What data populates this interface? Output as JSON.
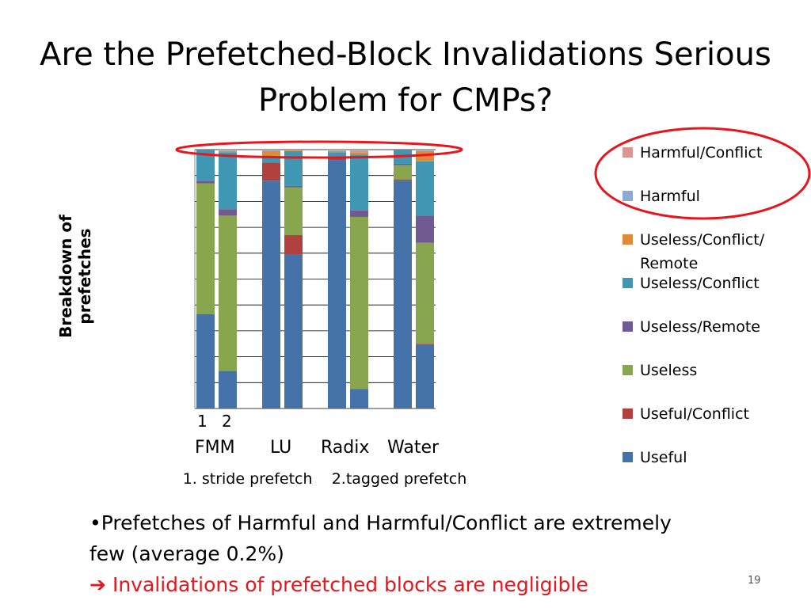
{
  "slide": {
    "title_line1": "Are the Prefetched-Block Invalidations Serious",
    "title_line2": "Problem for CMPs?",
    "y_axis_label": "Breakdown of prefetches",
    "x_series_numbers": [
      "1",
      "2"
    ],
    "caption": "1. stride prefetch    2.tagged prefetch",
    "bullet_text": "•Prefetches of Harmful and Harmful/Conflict are extremely few (average 0.2%)",
    "arrow_glyph": "➔",
    "conclusion": "Invalidations of prefetched blocks are negligible",
    "page_number": "19",
    "highlight_color": "#e8161c"
  },
  "chart_data": {
    "type": "bar",
    "stacked": true,
    "normalized": true,
    "title": "",
    "xlabel": "",
    "ylabel": "Breakdown of prefetches",
    "ylim": [
      0,
      100
    ],
    "groups": [
      "FMM",
      "LU",
      "Radix",
      "Water"
    ],
    "bar_labels": [
      "1",
      "2"
    ],
    "categories": [
      "FMM-1",
      "FMM-2",
      "LU-1",
      "LU-2",
      "Radix-1",
      "Radix-2",
      "Water-1",
      "Water-2"
    ],
    "legend_position": "right",
    "grid": true,
    "series": [
      {
        "name": "Useful",
        "color": "#4672aa",
        "values": [
          36.5,
          14.5,
          88,
          59.5,
          96,
          7.5,
          88,
          24.5
        ]
      },
      {
        "name": "Useful/Conflict",
        "color": "#b0413e",
        "values": [
          0,
          0,
          7,
          7.5,
          1.5,
          0,
          0.5,
          0.5
        ]
      },
      {
        "name": "Useless",
        "color": "#87a64e",
        "values": [
          50.5,
          60,
          0,
          18.5,
          0,
          66.5,
          5.5,
          39
        ]
      },
      {
        "name": "Useless/Remote",
        "color": "#705a91",
        "values": [
          1,
          2.5,
          0,
          0.5,
          0,
          2.5,
          0.5,
          10.5
        ]
      },
      {
        "name": "Useless/Conflict",
        "color": "#3f97b3",
        "values": [
          12,
          22,
          2.5,
          13.5,
          1.5,
          21.5,
          5.5,
          21
        ]
      },
      {
        "name": "Useless/Conflict/Remote",
        "color": "#e18a3a",
        "values": [
          0,
          0.5,
          2,
          0.3,
          0.5,
          1,
          0,
          4
        ]
      },
      {
        "name": "Harmful",
        "color": "#8caad2",
        "values": [
          0,
          0.3,
          0.5,
          0.2,
          0.3,
          0.5,
          0,
          0.3
        ]
      },
      {
        "name": "Harmful/Conflict",
        "color": "#d99694",
        "values": [
          0,
          0.2,
          0,
          0.05,
          0.2,
          0.5,
          0,
          0.2
        ]
      }
    ],
    "legend_entries": [
      {
        "label": "Harmful/Conflict",
        "color": "#d99694"
      },
      {
        "label": "Harmful",
        "color": "#8caad2"
      },
      {
        "label": "Useless/Conflict/ Remote",
        "color": "#e18a3a"
      },
      {
        "label": "Useless/Conflict",
        "color": "#3f97b3"
      },
      {
        "label": "Useless/Remote",
        "color": "#705a91"
      },
      {
        "label": "Useless",
        "color": "#87a64e"
      },
      {
        "label": "Useful/Conflict",
        "color": "#b0413e"
      },
      {
        "label": "Useful",
        "color": "#4672aa"
      }
    ],
    "gridline_color": "#000000"
  }
}
